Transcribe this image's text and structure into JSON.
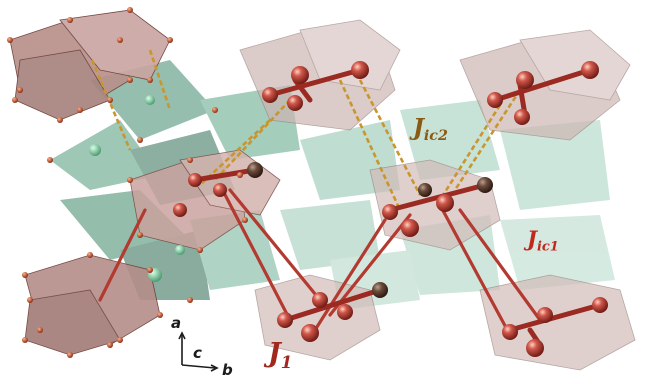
{
  "labels": {
    "j1": {
      "main": "J",
      "sub": "1"
    },
    "jic1": {
      "main": "J",
      "sub": "ic1"
    },
    "jic2": {
      "main": "J",
      "sub": "ic2"
    }
  },
  "axes": {
    "a": "a",
    "b": "b",
    "c": "c"
  },
  "colors": {
    "label_j1": "#a0281e",
    "label_jic1": "#c0281e",
    "label_jic2": "#8a5a12",
    "atom": "#a8322a",
    "bond": "#b33a30",
    "dashed_bond": "#c9962e",
    "tetra_green": "#6aa58c",
    "octa_pink": "#d8b8b4"
  }
}
